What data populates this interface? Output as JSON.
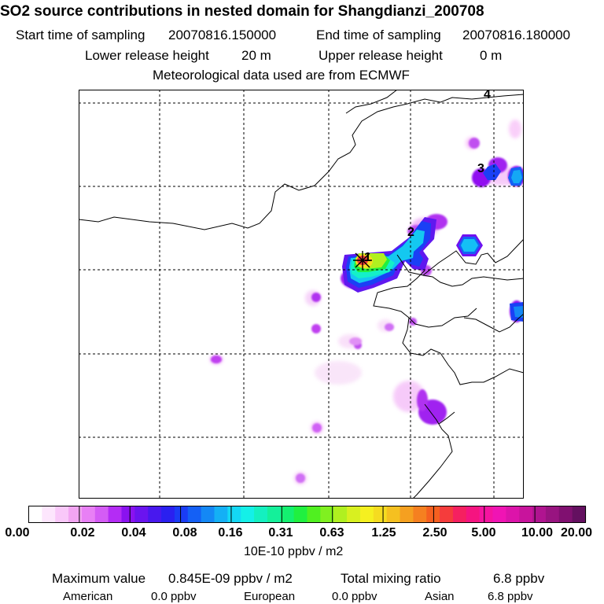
{
  "header": {
    "title": "SO2 source contributions in nested domain for Shangdianzi_200708",
    "start_label": "Start time of sampling",
    "start_value": "20070816.150000",
    "end_label": "End time of sampling",
    "end_value": "20070816.180000",
    "lower_label": "Lower release height",
    "lower_value": "20 m",
    "upper_label": "Upper release height",
    "upper_value": "0 m",
    "met_line": "Meteorological data used are from ECMWF"
  },
  "map": {
    "markers": [
      "1",
      "2",
      "3",
      "4"
    ],
    "source_symbol": "star"
  },
  "colorbar": {
    "ticks": [
      "0.00",
      "0.02",
      "0.04",
      "0.08",
      "0.16",
      "0.31",
      "0.63",
      "1.25",
      "2.50",
      "5.00",
      "10.00",
      "20.00"
    ],
    "colors": [
      "#ffffff",
      "#fde6fd",
      "#f9c8f9",
      "#f2a5f2",
      "#e880f5",
      "#d45cf5",
      "#b42cf5",
      "#8a12f0",
      "#6a14ef",
      "#4818ee",
      "#2a20f0",
      "#1a3cf5",
      "#1460f5",
      "#1488f5",
      "#14b0f5",
      "#14d8f5",
      "#14f0e8",
      "#14f0c0",
      "#14f09a",
      "#14f070",
      "#20f040",
      "#50f020",
      "#80f020",
      "#b0f020",
      "#d8f020",
      "#f5f020",
      "#f5dc20",
      "#f5c020",
      "#f5a020",
      "#f58020",
      "#f56020",
      "#f53c3c",
      "#f52060",
      "#f51480",
      "#f514a0",
      "#f014b4",
      "#dc14aa",
      "#c8149c",
      "#b01490",
      "#981480",
      "#801070",
      "#641060"
    ],
    "units": "10E-10 ppbv / m2"
  },
  "stats": {
    "max_label": "Maximum value",
    "max_value": "0.845E-09 ppbv / m2",
    "total_label": "Total mixing ratio",
    "total_value": "6.8 ppbv",
    "american_label": "American",
    "american_value": "0.0 ppbv",
    "european_label": "European",
    "european_value": "0.0 ppbv",
    "asian_label": "Asian",
    "asian_value": "6.8 ppbv"
  },
  "colors": {
    "grid": "#000000",
    "frame": "#000000"
  }
}
